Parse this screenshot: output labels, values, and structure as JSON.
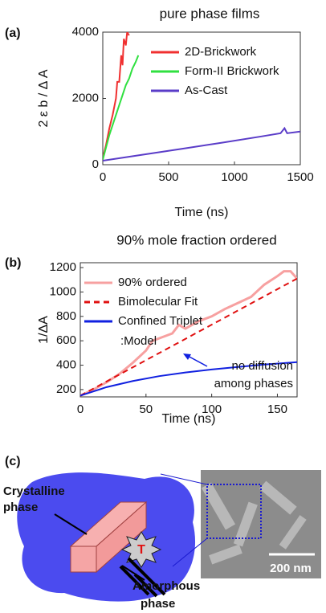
{
  "chart_data": [
    {
      "type": "line",
      "panel_label": "(a)",
      "title": "pure phase films",
      "xlabel": "Time (ns)",
      "ylabel": "2 ε b / Δ A",
      "xlim": [
        0,
        1500
      ],
      "ylim": [
        0,
        4000
      ],
      "xticks": [
        0,
        500,
        1000,
        1500
      ],
      "yticks": [
        0,
        2000,
        4000
      ],
      "legend": "upper right",
      "series": [
        {
          "name": "2D-Brickwork",
          "color": "#f03030",
          "x": [
            0,
            25,
            50,
            75,
            100,
            110,
            125,
            140,
            150,
            160,
            175,
            185,
            200
          ],
          "values": [
            200,
            600,
            1100,
            1500,
            2000,
            2500,
            2500,
            3300,
            3000,
            3800,
            3600,
            4000,
            3900
          ]
        },
        {
          "name": "Form-II Brickwork",
          "color": "#30e040",
          "x": [
            0,
            50,
            100,
            150,
            175,
            200,
            225,
            250,
            270
          ],
          "values": [
            150,
            900,
            1500,
            2100,
            2400,
            2600,
            2900,
            3100,
            3300
          ]
        },
        {
          "name": "As-Cast",
          "color": "#5a3cc8",
          "x": [
            0,
            300,
            600,
            900,
            1200,
            1350,
            1380,
            1400,
            1500
          ],
          "values": [
            120,
            300,
            480,
            660,
            850,
            950,
            1100,
            950,
            1000
          ]
        }
      ]
    },
    {
      "type": "line",
      "panel_label": "(b)",
      "title": "90% mole fraction ordered",
      "xlabel": "Time (ns)",
      "ylabel": "1/ΔA",
      "xlim": [
        0,
        165
      ],
      "ylim": [
        140,
        1240
      ],
      "xticks": [
        0,
        50,
        100,
        150
      ],
      "yticks": [
        200,
        400,
        600,
        800,
        1000,
        1200
      ],
      "legend": "upper left",
      "legend_note": ":Model",
      "annotations": [
        "no diffusion",
        "among phases"
      ],
      "series": [
        {
          "name": "90% ordered",
          "color": "#f7a0a0",
          "dash": false,
          "x": [
            0,
            10,
            20,
            30,
            40,
            50,
            55,
            60,
            70,
            75,
            80,
            90,
            100,
            110,
            120,
            130,
            140,
            150,
            155,
            160,
            165
          ],
          "values": [
            150,
            200,
            260,
            330,
            420,
            520,
            600,
            620,
            660,
            730,
            700,
            760,
            800,
            860,
            910,
            960,
            1060,
            1130,
            1170,
            1170,
            1110
          ]
        },
        {
          "name": "Bimolecular Fit",
          "color": "#e01010",
          "dash": true,
          "x": [
            0,
            165
          ],
          "values": [
            150,
            1110
          ]
        },
        {
          "name": "Confined Triplet",
          "color": "#1020e0",
          "dash": false,
          "x": [
            0,
            20,
            40,
            60,
            80,
            100,
            120,
            140,
            165
          ],
          "values": [
            150,
            220,
            270,
            310,
            340,
            365,
            385,
            405,
            425
          ]
        }
      ]
    }
  ],
  "diagram": {
    "panel_label": "(c)",
    "crystalline_label": [
      "Crystalline",
      "phase"
    ],
    "amorphous_label": [
      "Amorphous",
      "phase"
    ],
    "triplet": "T",
    "scale_bar": "200 nm"
  }
}
